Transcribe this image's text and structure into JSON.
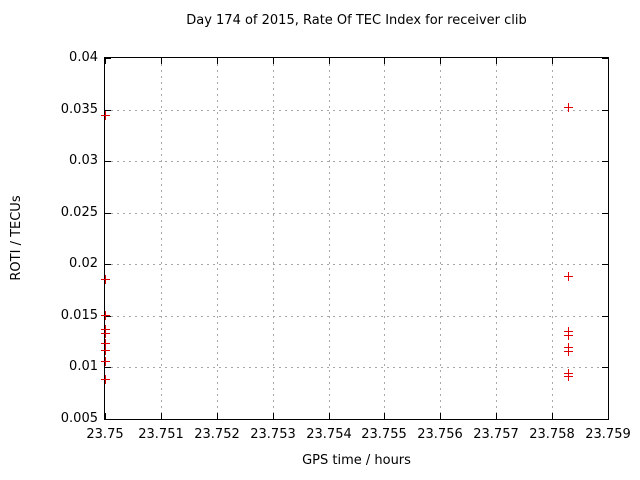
{
  "chart_data": {
    "type": "scatter",
    "title": "Day 174 of 2015, Rate Of TEC Index for receiver clib",
    "xlabel": "GPS time / hours",
    "ylabel": "ROTI / TECUs",
    "xlim": [
      23.75,
      23.759
    ],
    "ylim": [
      0.005,
      0.04
    ],
    "xticks": {
      "values": [
        23.75,
        23.751,
        23.752,
        23.753,
        23.754,
        23.755,
        23.756,
        23.757,
        23.758,
        23.759
      ],
      "labels": [
        "23.75",
        "23.751",
        "23.752",
        "23.753",
        "23.754",
        "23.755",
        "23.756",
        "23.757",
        "23.758",
        "23.759"
      ]
    },
    "yticks": {
      "values": [
        0.005,
        0.01,
        0.015,
        0.02,
        0.025,
        0.03,
        0.035,
        0.04
      ],
      "labels": [
        "0.005",
        "0.01",
        "0.015",
        "0.02",
        "0.025",
        "0.03",
        "0.035",
        "0.04"
      ]
    },
    "grid": true,
    "legend": "none",
    "marker": "plus",
    "colors": {
      "marker": "#e00000",
      "grid": "#a8a8a8",
      "axis": "#000000",
      "background": "#ffffff"
    },
    "series": [
      {
        "name": "ROTI",
        "x": [
          23.75,
          23.75,
          23.75,
          23.75,
          23.75,
          23.75,
          23.75,
          23.75,
          23.75,
          23.7583,
          23.7583,
          23.7583,
          23.7583,
          23.7583,
          23.7583,
          23.7583,
          23.7583
        ],
        "y": [
          0.0344,
          0.0185,
          0.015,
          0.0137,
          0.0133,
          0.0123,
          0.0116,
          0.0106,
          0.0088,
          0.0352,
          0.0188,
          0.0135,
          0.0131,
          0.0119,
          0.0115,
          0.0094,
          0.0091
        ]
      }
    ]
  }
}
